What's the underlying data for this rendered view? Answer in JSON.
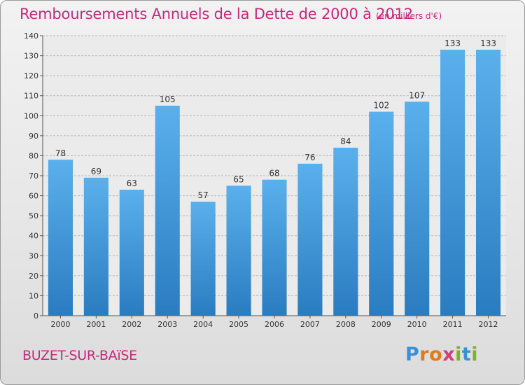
{
  "title": "Remboursements Annuels de la Dette de 2000 à 2012",
  "subtitle": "(en milliers d'€)",
  "city": "BUZET-SUR-BAïSE",
  "logo": {
    "letters": [
      "P",
      "r",
      "o",
      "x",
      "i",
      "t",
      "i"
    ],
    "colors": [
      "#3a8fd6",
      "#e07b1a",
      "#e07b1a",
      "#d63a7a",
      "#7ab51d",
      "#3a8fd6",
      "#7ab51d"
    ]
  },
  "colors": {
    "title": "#c8287a",
    "bar_top": "#5ab0ec",
    "bar_bottom": "#2a7cc0",
    "grid": "#b8b8b8"
  },
  "chart_data": {
    "type": "bar",
    "title": "Remboursements Annuels de la Dette de 2000 à 2012",
    "subtitle": "(en milliers d'€)",
    "xlabel": "",
    "ylabel": "",
    "categories": [
      "2000",
      "2001",
      "2002",
      "2003",
      "2004",
      "2005",
      "2006",
      "2007",
      "2008",
      "2009",
      "2010",
      "2011",
      "2012"
    ],
    "values": [
      78,
      69,
      63,
      105,
      57,
      65,
      68,
      76,
      84,
      102,
      107,
      133,
      133
    ],
    "ylim": [
      0,
      140
    ],
    "yticks": [
      0,
      10,
      20,
      30,
      40,
      50,
      60,
      70,
      80,
      90,
      100,
      110,
      120,
      130,
      140
    ],
    "grid": true,
    "data_labels": true
  }
}
